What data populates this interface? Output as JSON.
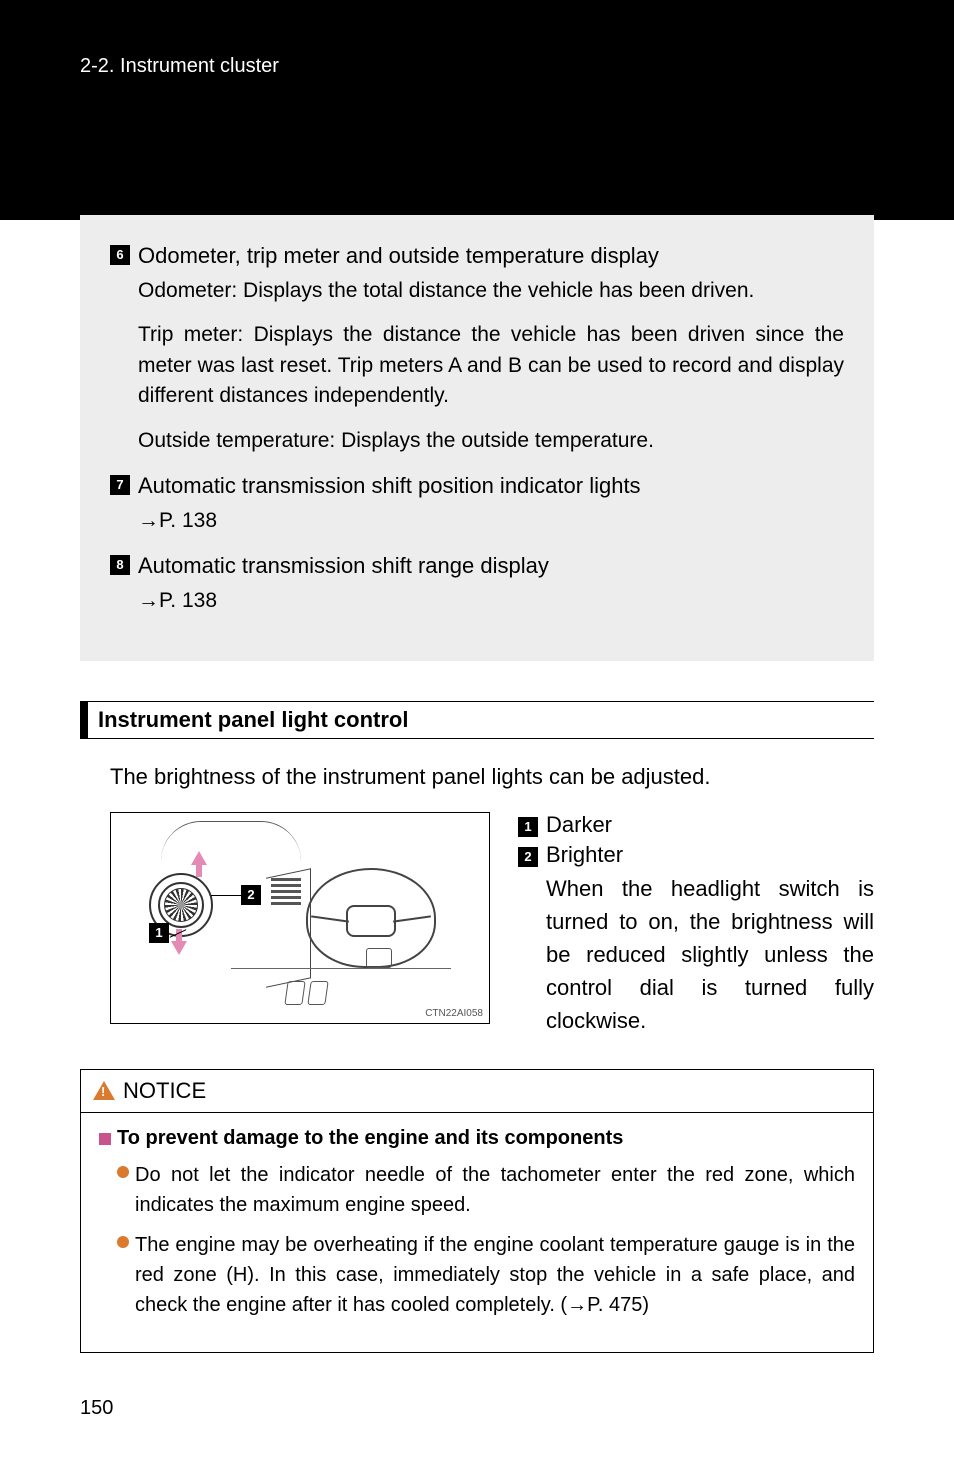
{
  "header": {
    "breadcrumb": "2-2. Instrument cluster"
  },
  "grayItems": [
    {
      "num": "6",
      "title": "Odometer, trip meter and outside temperature display",
      "paras": [
        "Odometer: Displays the total distance the vehicle has been driven.",
        "Trip meter: Displays the distance the vehicle has been driven since the meter was last reset. Trip meters A and B can be used to record and display different distances independently.",
        "Outside temperature: Displays the outside temperature."
      ],
      "ref": null
    },
    {
      "num": "7",
      "title": "Automatic transmission shift position indicator lights",
      "paras": [],
      "ref": "→P. 138"
    },
    {
      "num": "8",
      "title": "Automatic transmission shift range display",
      "paras": [],
      "ref": "→P. 138"
    }
  ],
  "section": {
    "title": "Instrument panel light control",
    "intro": "The brightness of the instrument panel lights can be adjusted."
  },
  "diagram": {
    "callout1": "1",
    "callout2": "2",
    "figLabel": "CTN22AI058",
    "colors": {
      "arrow": "#e48bb5",
      "line": "#444444"
    }
  },
  "rightList": [
    {
      "num": "1",
      "label": "Darker",
      "body": null
    },
    {
      "num": "2",
      "label": "Brighter",
      "body": "When the headlight switch is turned to on, the brightness will be reduced slightly unless the control dial is turned fully clockwise."
    }
  ],
  "notice": {
    "head": "NOTICE",
    "subtitle": "To prevent damage to the engine and its components",
    "bullets": [
      "Do not let the indicator needle of the tachometer enter the red zone, which indicates the maximum engine speed.",
      "The engine may be overheating if the engine coolant temperature gauge is in the red zone (H). In this case, immediately stop the vehicle in a safe place, and check the engine after it has cooled completely. (→P. 475)"
    ]
  },
  "pageNumber": "150",
  "colors": {
    "headerBg": "#000000",
    "grayBg": "#ededed",
    "accentPink": "#c9548d",
    "accentOrange": "#d97a2e"
  }
}
